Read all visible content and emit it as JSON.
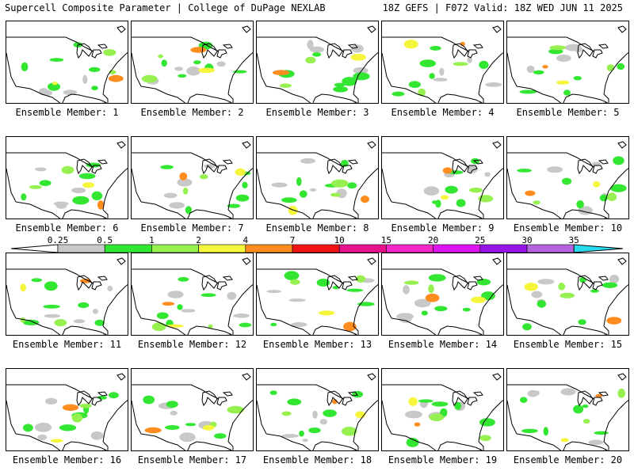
{
  "header": {
    "title": "Supercell Composite Parameter | College of DuPage NEXLAB",
    "run_info": "18Z GEFS | F072 Valid: 18Z WED JUN 11 2025"
  },
  "legend": {
    "thresholds": [
      "0.25",
      "0.5",
      "1",
      "2",
      "4",
      "7",
      "10",
      "15",
      "20",
      "25",
      "30",
      "35"
    ],
    "colors": [
      "#c8c8c8",
      "#32e632",
      "#96f050",
      "#f5f53c",
      "#ff8c1e",
      "#f01414",
      "#e6148c",
      "#f028c8",
      "#dc14f0",
      "#9614e6",
      "#b464dc",
      "#28dcf0"
    ]
  },
  "members": [
    {
      "label": "Ensemble Member: 1"
    },
    {
      "label": "Ensemble Member: 2"
    },
    {
      "label": "Ensemble Member: 3"
    },
    {
      "label": "Ensemble Member: 4"
    },
    {
      "label": "Ensemble Member: 5"
    },
    {
      "label": "Ensemble Member: 6"
    },
    {
      "label": "Ensemble Member: 7"
    },
    {
      "label": "Ensemble Member: 8"
    },
    {
      "label": "Ensemble Member: 9"
    },
    {
      "label": "Ensemble Member: 10"
    },
    {
      "label": "Ensemble Member: 11"
    },
    {
      "label": "Ensemble Member: 12"
    },
    {
      "label": "Ensemble Member: 13"
    },
    {
      "label": "Ensemble Member: 14"
    },
    {
      "label": "Ensemble Member: 15"
    },
    {
      "label": "Ensemble Member: 16"
    },
    {
      "label": "Ensemble Member: 17"
    },
    {
      "label": "Ensemble Member: 18"
    },
    {
      "label": "Ensemble Member: 19"
    },
    {
      "label": "Ensemble Member: 20"
    }
  ]
}
